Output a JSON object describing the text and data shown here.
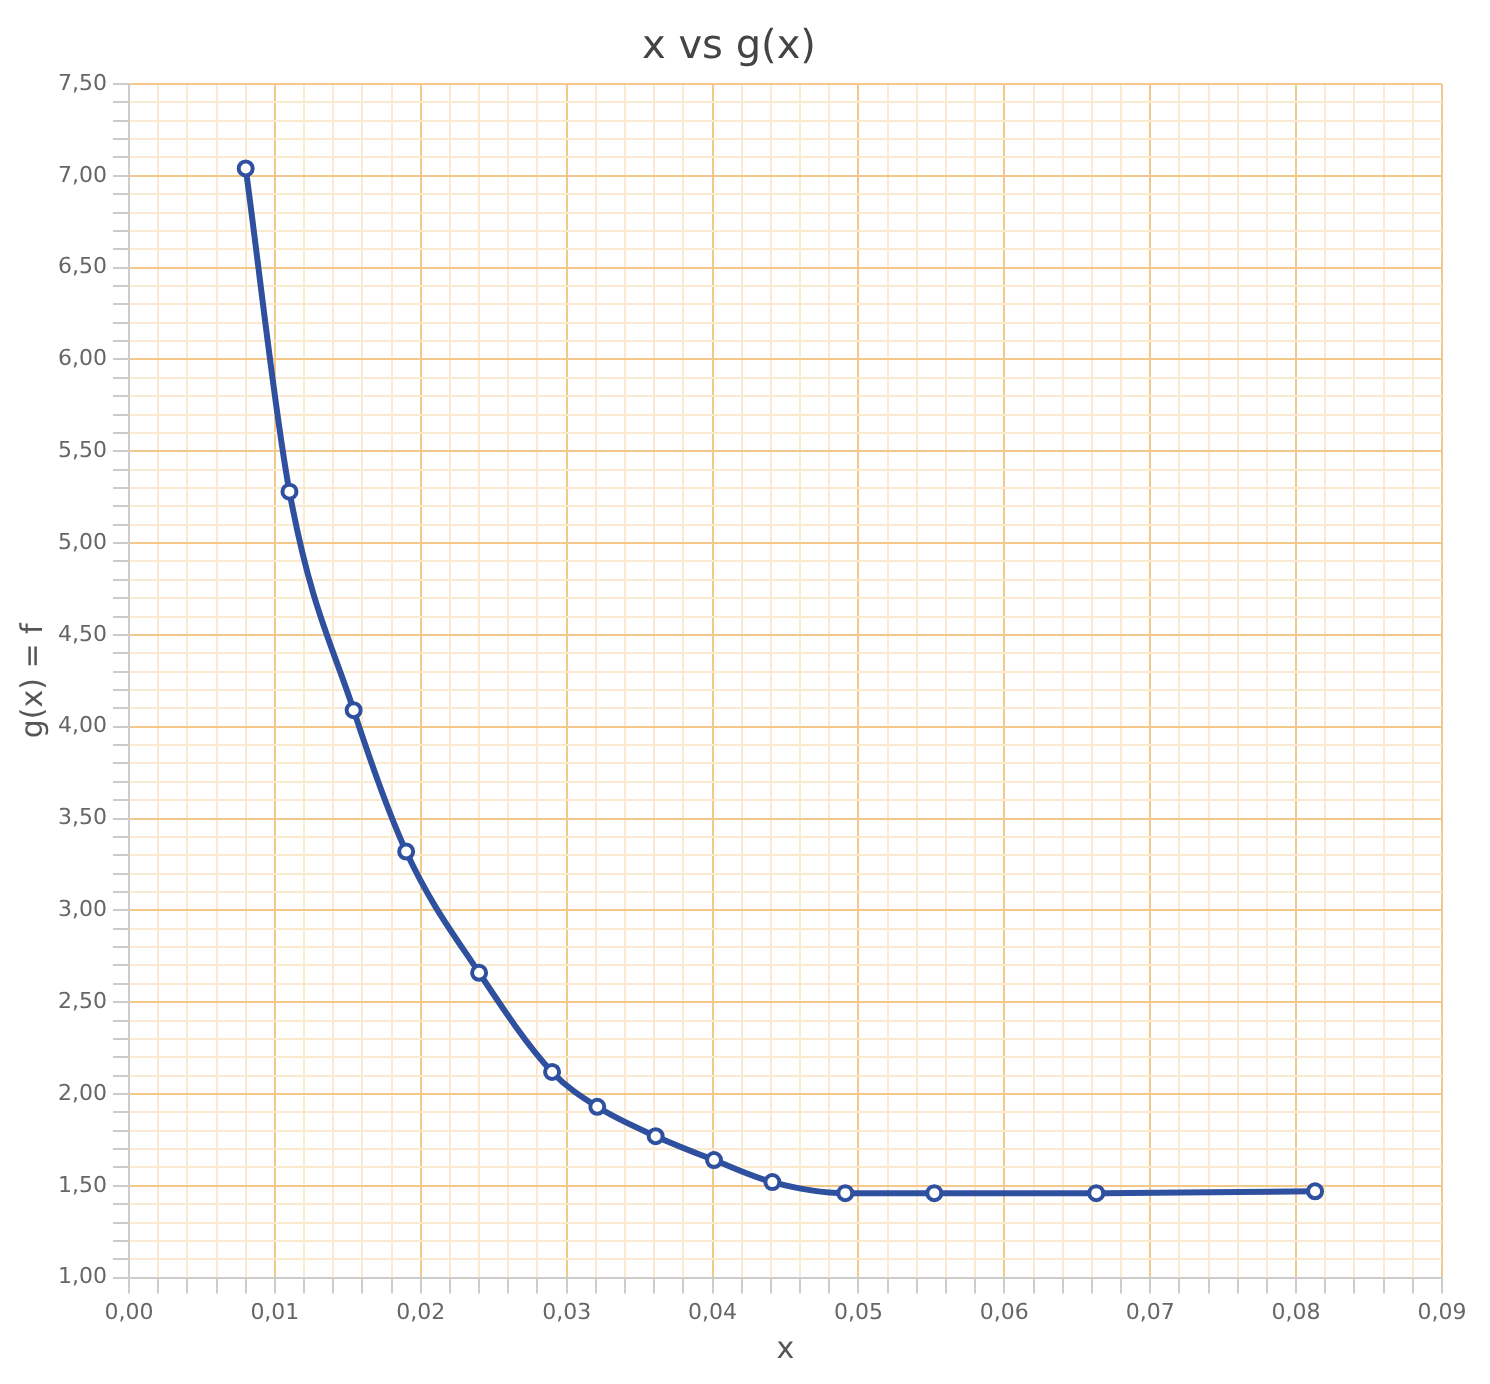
{
  "chart_data": {
    "type": "line",
    "title": "x vs g(x)",
    "xlabel": "x",
    "ylabel": "g(x) = f",
    "series": [
      {
        "color": "#2f4f9f",
        "x": [
          0.008,
          0.011,
          0.0154,
          0.019,
          0.024,
          0.029,
          0.0321,
          0.0361,
          0.0401,
          0.0441,
          0.0491,
          0.0552,
          0.0663,
          0.0813
        ],
        "values": [
          7.04,
          5.28,
          4.09,
          3.32,
          2.66,
          2.12,
          1.93,
          1.77,
          1.64,
          1.52,
          1.46,
          1.46,
          1.46,
          1.47
        ]
      }
    ],
    "xlim": [
      0,
      0.09
    ],
    "xticks": [
      {
        "value": 0,
        "label": "0,00"
      },
      {
        "value": 0.002,
        "label": null
      },
      {
        "value": 0.004,
        "label": null
      },
      {
        "value": 0.006,
        "label": null
      },
      {
        "value": 0.008,
        "label": null
      },
      {
        "value": 0.01,
        "label": "0,01"
      },
      {
        "value": 0.012,
        "label": null
      },
      {
        "value": 0.014,
        "label": null
      },
      {
        "value": 0.016,
        "label": null
      },
      {
        "value": 0.018,
        "label": null
      },
      {
        "value": 0.02,
        "label": "0,02"
      },
      {
        "value": 0.022,
        "label": null
      },
      {
        "value": 0.024,
        "label": null
      },
      {
        "value": 0.026,
        "label": null
      },
      {
        "value": 0.028,
        "label": null
      },
      {
        "value": 0.03,
        "label": "0,03"
      },
      {
        "value": 0.032,
        "label": null
      },
      {
        "value": 0.034,
        "label": null
      },
      {
        "value": 0.036,
        "label": null
      },
      {
        "value": 0.038,
        "label": null
      },
      {
        "value": 0.04,
        "label": "0,04"
      },
      {
        "value": 0.042,
        "label": null
      },
      {
        "value": 0.044,
        "label": null
      },
      {
        "value": 0.046,
        "label": null
      },
      {
        "value": 0.048,
        "label": null
      },
      {
        "value": 0.05,
        "label": "0,05"
      },
      {
        "value": 0.052,
        "label": null
      },
      {
        "value": 0.054,
        "label": null
      },
      {
        "value": 0.056,
        "label": null
      },
      {
        "value": 0.058,
        "label": null
      },
      {
        "value": 0.06,
        "label": "0,06"
      },
      {
        "value": 0.062,
        "label": null
      },
      {
        "value": 0.064,
        "label": null
      },
      {
        "value": 0.066,
        "label": null
      },
      {
        "value": 0.068,
        "label": null
      },
      {
        "value": 0.07,
        "label": "0,07"
      },
      {
        "value": 0.072,
        "label": null
      },
      {
        "value": 0.074,
        "label": null
      },
      {
        "value": 0.076,
        "label": null
      },
      {
        "value": 0.078,
        "label": null
      },
      {
        "value": 0.08,
        "label": "0,08"
      },
      {
        "value": 0.082,
        "label": null
      },
      {
        "value": 0.084,
        "label": null
      },
      {
        "value": 0.086,
        "label": null
      },
      {
        "value": 0.088,
        "label": null
      },
      {
        "value": 0.09,
        "label": "0,09"
      }
    ],
    "ylim": [
      1,
      7.5
    ],
    "yticks": [
      {
        "value": 1,
        "label": "1,00"
      },
      {
        "value": 1.1,
        "label": null
      },
      {
        "value": 1.2,
        "label": null
      },
      {
        "value": 1.3,
        "label": null
      },
      {
        "value": 1.4,
        "label": null
      },
      {
        "value": 1.5,
        "label": "1,50"
      },
      {
        "value": 1.6,
        "label": null
      },
      {
        "value": 1.7,
        "label": null
      },
      {
        "value": 1.8,
        "label": null
      },
      {
        "value": 1.9,
        "label": null
      },
      {
        "value": 2,
        "label": "2,00"
      },
      {
        "value": 2.1,
        "label": null
      },
      {
        "value": 2.2,
        "label": null
      },
      {
        "value": 2.3,
        "label": null
      },
      {
        "value": 2.4,
        "label": null
      },
      {
        "value": 2.5,
        "label": "2,50"
      },
      {
        "value": 2.6,
        "label": null
      },
      {
        "value": 2.7,
        "label": null
      },
      {
        "value": 2.8,
        "label": null
      },
      {
        "value": 2.9,
        "label": null
      },
      {
        "value": 3,
        "label": "3,00"
      },
      {
        "value": 3.1,
        "label": null
      },
      {
        "value": 3.2,
        "label": null
      },
      {
        "value": 3.3,
        "label": null
      },
      {
        "value": 3.4,
        "label": null
      },
      {
        "value": 3.5,
        "label": "3,50"
      },
      {
        "value": 3.6,
        "label": null
      },
      {
        "value": 3.7,
        "label": null
      },
      {
        "value": 3.8,
        "label": null
      },
      {
        "value": 3.9,
        "label": null
      },
      {
        "value": 4,
        "label": "4,00"
      },
      {
        "value": 4.1,
        "label": null
      },
      {
        "value": 4.2,
        "label": null
      },
      {
        "value": 4.3,
        "label": null
      },
      {
        "value": 4.4,
        "label": null
      },
      {
        "value": 4.5,
        "label": "4,50"
      },
      {
        "value": 4.6,
        "label": null
      },
      {
        "value": 4.7,
        "label": null
      },
      {
        "value": 4.8,
        "label": null
      },
      {
        "value": 4.9,
        "label": null
      },
      {
        "value": 5,
        "label": "5,00"
      },
      {
        "value": 5.1,
        "label": null
      },
      {
        "value": 5.2,
        "label": null
      },
      {
        "value": 5.3,
        "label": null
      },
      {
        "value": 5.4,
        "label": null
      },
      {
        "value": 5.5,
        "label": "5,50"
      },
      {
        "value": 5.6,
        "label": null
      },
      {
        "value": 5.7,
        "label": null
      },
      {
        "value": 5.8,
        "label": null
      },
      {
        "value": 5.9,
        "label": null
      },
      {
        "value": 6,
        "label": "6,00"
      },
      {
        "value": 6.1,
        "label": null
      },
      {
        "value": 6.2,
        "label": null
      },
      {
        "value": 6.3,
        "label": null
      },
      {
        "value": 6.4,
        "label": null
      },
      {
        "value": 6.5,
        "label": "6,50"
      },
      {
        "value": 6.6,
        "label": null
      },
      {
        "value": 6.7,
        "label": null
      },
      {
        "value": 6.8,
        "label": null
      },
      {
        "value": 6.9,
        "label": null
      },
      {
        "value": 7,
        "label": "7,00"
      },
      {
        "value": 7.1,
        "label": null
      },
      {
        "value": 7.2,
        "label": null
      },
      {
        "value": 7.3,
        "label": null
      },
      {
        "value": 7.4,
        "label": null
      },
      {
        "value": 7.5,
        "label": "7,50"
      }
    ],
    "grid": true,
    "legend": false,
    "marker": "circle",
    "line_style": "solid"
  }
}
